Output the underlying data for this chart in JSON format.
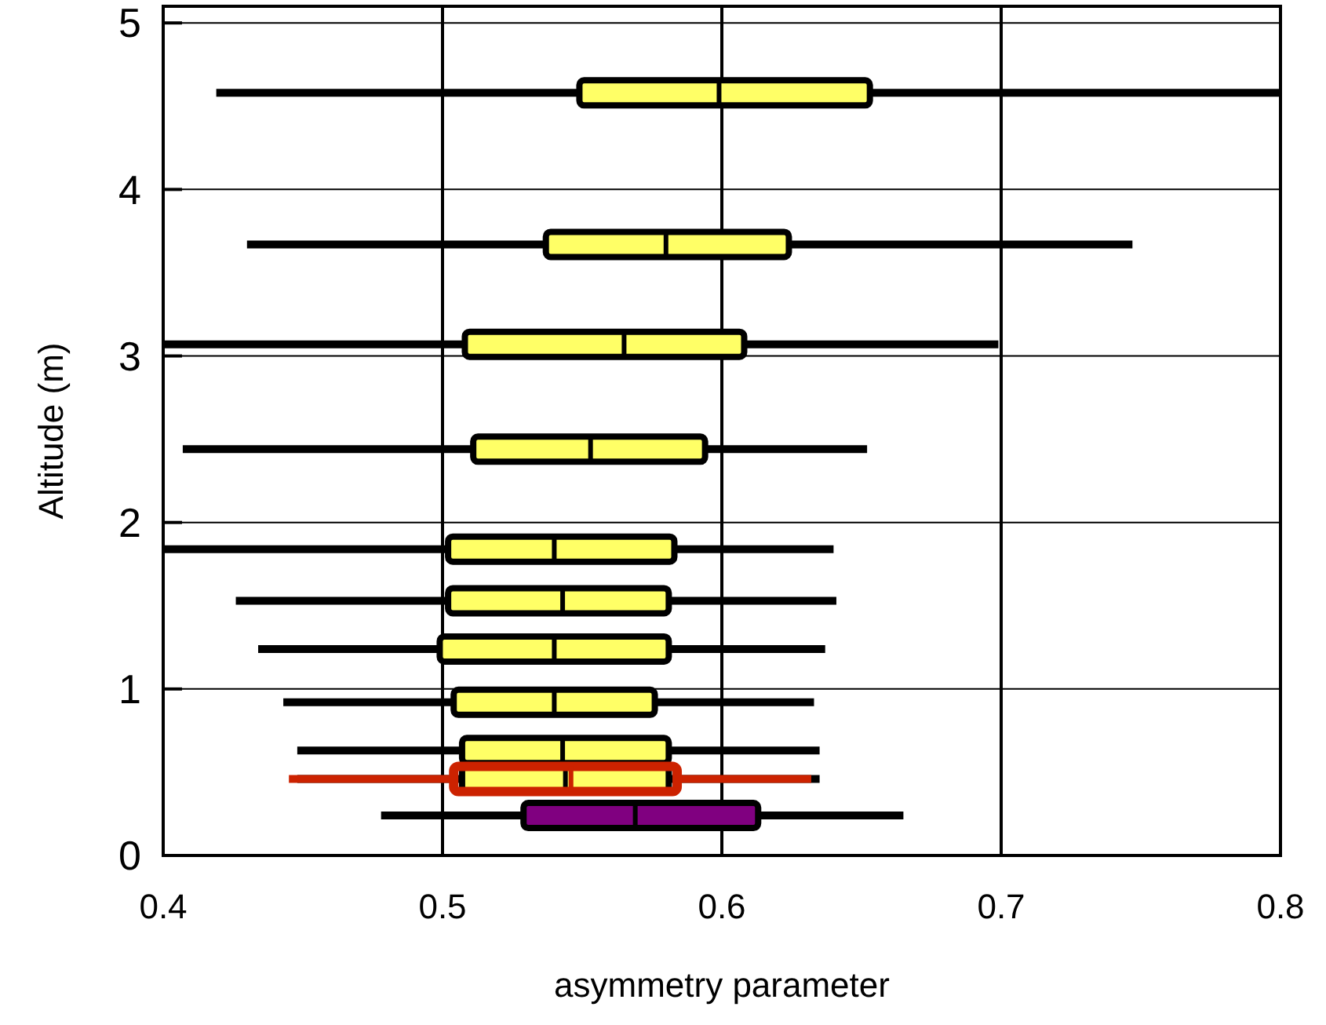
{
  "chart_data": {
    "type": "box",
    "orientation": "horizontal",
    "xlabel": "asymmetry parameter",
    "ylabel": "Altitude (m)",
    "xlim": [
      0.4,
      0.8
    ],
    "xticks": [
      {
        "value": 0.4,
        "label": "0.4"
      },
      0.5,
      0.6,
      0.7,
      {
        "value": 0.8,
        "label": "0.8"
      }
    ],
    "ylim": [
      0,
      5.1
    ],
    "yticks": [
      0,
      1,
      2,
      3,
      4,
      5
    ],
    "grid": true,
    "series": [
      {
        "color": "#000000",
        "x": [
          4.58,
          3.67,
          3.07,
          2.44,
          1.84,
          1.53,
          1.24,
          0.92,
          0.63,
          0.46
        ],
        "colors": [
          "#ffff66",
          "#ffff66",
          "#ffff66",
          "#ffff66",
          "#ffff66",
          "#ffff66",
          "#ffff66",
          "#ffff66",
          "#ffff66",
          "#ffff66"
        ],
        "boxes": [
          {
            "low": 0.419,
            "q1": 0.549,
            "median": 0.599,
            "q3": 0.653,
            "high": 0.8
          },
          {
            "low": 0.43,
            "q1": 0.537,
            "median": 0.58,
            "q3": 0.624,
            "high": 0.747
          },
          {
            "low": 0.4,
            "q1": 0.508,
            "median": 0.565,
            "q3": 0.608,
            "high": 0.699
          },
          {
            "low": 0.407,
            "q1": 0.511,
            "median": 0.553,
            "q3": 0.594,
            "high": 0.652
          },
          {
            "low": 0.4,
            "q1": 0.502,
            "median": 0.54,
            "q3": 0.583,
            "high": 0.64
          },
          {
            "low": 0.426,
            "q1": 0.502,
            "median": 0.543,
            "q3": 0.581,
            "high": 0.641
          },
          {
            "low": 0.434,
            "q1": 0.499,
            "median": 0.54,
            "q3": 0.581,
            "high": 0.637
          },
          {
            "low": 0.443,
            "q1": 0.504,
            "median": 0.54,
            "q3": 0.576,
            "high": 0.633
          },
          {
            "low": 0.448,
            "q1": 0.507,
            "median": 0.543,
            "q3": 0.581,
            "high": 0.635
          },
          {
            "low": 0.448,
            "q1": 0.507,
            "median": 0.544,
            "q3": 0.581,
            "high": 0.635
          }
        ]
      },
      {
        "color": "#000000",
        "x": [
          0.24
        ],
        "colors": [
          "#800080"
        ],
        "boxes": [
          {
            "low": 0.478,
            "q1": 0.529,
            "median": 0.569,
            "q3": 0.613,
            "high": 0.665
          }
        ]
      },
      {
        "color": "#cc2200",
        "x": [
          0.46
        ],
        "colors": [
          null
        ],
        "boxes": [
          {
            "low": 0.445,
            "q1": 0.504,
            "median": 0.546,
            "q3": 0.584,
            "high": 0.632
          }
        ]
      }
    ]
  }
}
